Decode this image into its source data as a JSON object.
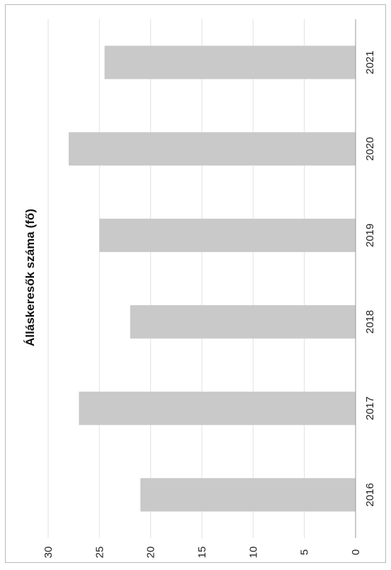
{
  "chart_data": {
    "type": "bar",
    "orientation": "horizontal",
    "title": "Álláskeresők száma (fő)",
    "categories": [
      "2016",
      "2017",
      "2018",
      "2019",
      "2020",
      "2021"
    ],
    "series": [
      {
        "values": [
          21,
          27,
          22,
          25,
          28,
          24.5
        ]
      }
    ],
    "value_axis": {
      "min": 0,
      "max": 30,
      "ticks": [
        0,
        5,
        10,
        15,
        20,
        25,
        30
      ]
    },
    "grid": true,
    "legend": "none",
    "colors": {
      "bar": "#c9c9c9",
      "grid": "#e2e2e2",
      "axis": "#999999"
    }
  }
}
